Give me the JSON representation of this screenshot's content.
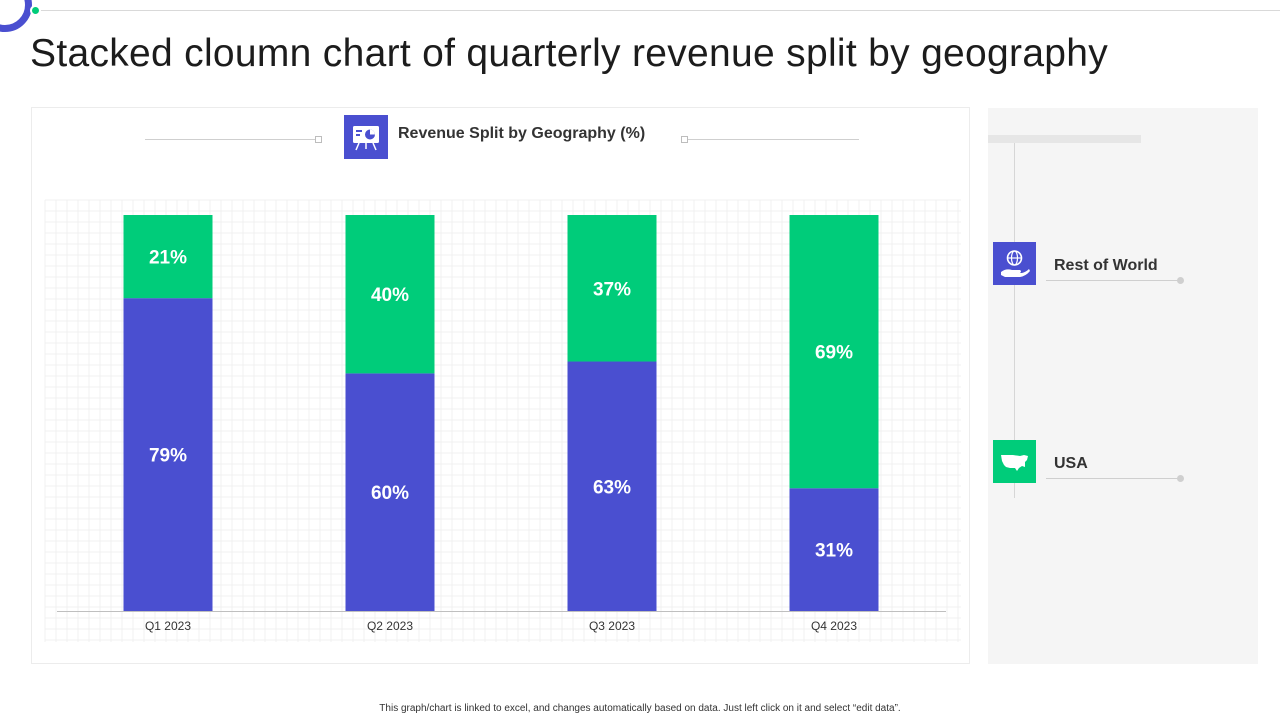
{
  "page": {
    "title": "Stacked cloumn chart of quarterly revenue split by geography",
    "footnote": "This graph/chart is linked to excel, and changes automatically based on data. Just left click on it and select “edit data”."
  },
  "colors": {
    "usa": "#4a4fd0",
    "rest_of_world": "#00cc7a",
    "accent": "#4a4fd0"
  },
  "icons": {
    "chart_heading": "presentation-board-icon",
    "rest_of_world": "hand-globe-icon",
    "usa": "usa-map-icon"
  },
  "legend": {
    "items": [
      {
        "label": "Rest of World",
        "color": "#00cc7a",
        "icon": "hand-globe-icon"
      },
      {
        "label": "USA",
        "color": "#4a4fd0",
        "icon": "usa-map-icon"
      }
    ]
  },
  "chart_data": {
    "type": "bar",
    "stacked": true,
    "title": "Revenue Split by Geography (%)",
    "xlabel": "",
    "ylabel": "",
    "ylim": [
      0,
      100
    ],
    "grid": true,
    "legend_position": "right",
    "categories": [
      "Q1 2023",
      "Q2 2023",
      "Q3 2023",
      "Q4 2023"
    ],
    "series": [
      {
        "name": "USA",
        "color": "#4a4fd0",
        "values": [
          79,
          60,
          63,
          31
        ],
        "labels": [
          "79%",
          "60%",
          "63%",
          "31%"
        ]
      },
      {
        "name": "Rest of World",
        "color": "#00cc7a",
        "values": [
          21,
          40,
          37,
          69
        ],
        "labels": [
          "21%",
          "40%",
          "37%",
          "69%"
        ]
      }
    ]
  }
}
